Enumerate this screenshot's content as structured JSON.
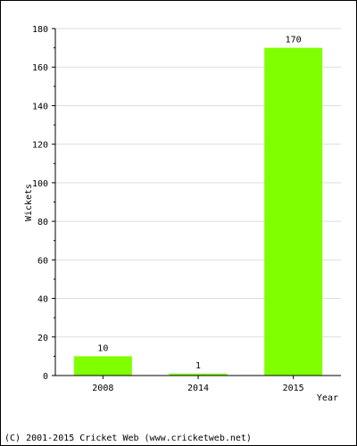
{
  "chart_data": {
    "type": "bar",
    "categories": [
      "2008",
      "2014",
      "2015"
    ],
    "values": [
      10,
      1,
      170
    ],
    "data_labels": [
      "10",
      "1",
      "170"
    ],
    "title": "",
    "xlabel": "Year",
    "ylabel": "Wickets",
    "ylim": [
      0,
      180
    ],
    "yticks": [
      "0",
      "20",
      "40",
      "60",
      "80",
      "100",
      "120",
      "140",
      "160",
      "180"
    ],
    "grid": true,
    "bar_color": "#80ff00",
    "gridline_color": "#dddddd",
    "legend": "none"
  },
  "footer": {
    "copyright": "(C) 2001-2015 Cricket Web (www.cricketweb.net)"
  }
}
